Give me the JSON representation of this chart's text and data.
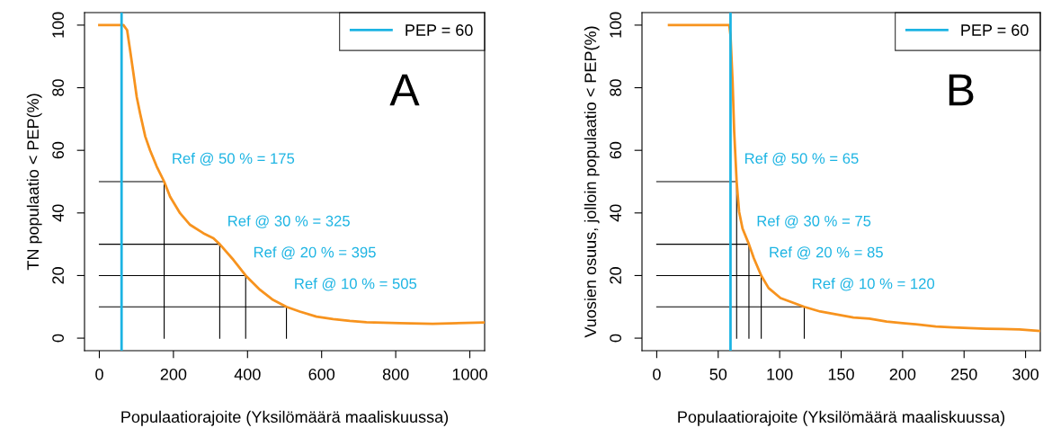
{
  "chart_data": [
    {
      "type": "line",
      "xlabel": "Populaatiorajoite (Yksilömäärä maaliskuussa)",
      "ylabel": "TN populaatio < PEP(%)",
      "xlim": [
        -40,
        1040
      ],
      "xticks": [
        0,
        200,
        400,
        600,
        800,
        1000
      ],
      "ylim": [
        -4,
        104
      ],
      "yticks": [
        0,
        20,
        40,
        60,
        80,
        100
      ],
      "grid": false,
      "legend": "top right",
      "series": [
        {
          "color": "#f7931e",
          "x": [
            0,
            65,
            75,
            83,
            92,
            101,
            110,
            124,
            137,
            155,
            175,
            191,
            218,
            245,
            281,
            308,
            325,
            362,
            395,
            434,
            469,
            505,
            541,
            586,
            631,
            676,
            721,
            811,
            900,
            1040
          ],
          "values": [
            100,
            100,
            98.4,
            92,
            84.6,
            77,
            71.8,
            64.4,
            60,
            54.8,
            50,
            45.2,
            39.9,
            36.2,
            33.5,
            31.9,
            30,
            25,
            20,
            15.4,
            12.2,
            10,
            8.5,
            6.9,
            6.1,
            5.5,
            5.1,
            4.8,
            4.6,
            5
          ]
        },
        {
          "color": "#000000",
          "x": [
            0,
            175,
            175
          ],
          "values": [
            50,
            50,
            0
          ]
        },
        {
          "color": "#000000",
          "x": [
            0,
            325,
            325
          ],
          "values": [
            30,
            30,
            0
          ]
        },
        {
          "color": "#000000",
          "x": [
            0,
            395,
            395
          ],
          "values": [
            20,
            20,
            0
          ]
        },
        {
          "color": "#000000",
          "x": [
            0,
            505,
            505
          ],
          "values": [
            10,
            10,
            0
          ]
        },
        {
          "name": "PEP = 60",
          "color": "#1cb4e3",
          "x": [
            60,
            60
          ],
          "values": [
            -4,
            104
          ]
        }
      ],
      "annotations": [
        "A",
        {
          "text": "Ref @ 50 % = 175",
          "x": 175,
          "y": 50
        },
        {
          "text": "Ref @ 30 % = 325",
          "x": 325,
          "y": 30
        },
        {
          "text": "Ref @ 20 % = 395",
          "x": 395,
          "y": 20
        },
        {
          "text": "Ref @ 10 % = 505",
          "x": 505,
          "y": 10
        }
      ]
    },
    {
      "type": "line",
      "xlabel": "Populaatiorajoite (Yksilömäärä maaliskuussa)",
      "ylabel": "Vuosien osuus, jolloin populaatio < PEP(%)",
      "xlim": [
        -12,
        312
      ],
      "xticks": [
        0,
        50,
        100,
        150,
        200,
        250,
        300
      ],
      "ylim": [
        -4,
        104
      ],
      "yticks": [
        0,
        20,
        40,
        60,
        80,
        100
      ],
      "grid": false,
      "legend": "top right",
      "series": [
        {
          "color": "#f7931e",
          "x": [
            10,
            59,
            60,
            61.7,
            63,
            65,
            67,
            69.8,
            75,
            79,
            85,
            91,
            100.7,
            120,
            133,
            149,
            160,
            173,
            187,
            200,
            214,
            227,
            241,
            254,
            268,
            281,
            295,
            312
          ],
          "values": [
            100,
            100,
            96.8,
            82,
            66,
            50,
            40.4,
            35,
            30,
            25.5,
            20,
            16,
            12.8,
            10,
            8.5,
            7.4,
            6.6,
            6.2,
            5.3,
            4.8,
            4.3,
            3.7,
            3.4,
            3.2,
            3,
            2.9,
            2.8,
            2.3
          ]
        },
        {
          "color": "#000000",
          "x": [
            0,
            65,
            65
          ],
          "values": [
            50,
            50,
            0
          ]
        },
        {
          "color": "#000000",
          "x": [
            0,
            75,
            75
          ],
          "values": [
            30,
            30,
            0
          ]
        },
        {
          "color": "#000000",
          "x": [
            0,
            85,
            85
          ],
          "values": [
            20,
            20,
            0
          ]
        },
        {
          "color": "#000000",
          "x": [
            0,
            120,
            120
          ],
          "values": [
            10,
            10,
            0
          ]
        },
        {
          "name": "PEP = 60",
          "color": "#1cb4e3",
          "x": [
            60,
            60
          ],
          "values": [
            -4,
            104
          ]
        }
      ],
      "annotations": [
        "B",
        {
          "text": "Ref @ 50 % = 65",
          "x": 65,
          "y": 50
        },
        {
          "text": "Ref @ 30 % = 75",
          "x": 75,
          "y": 30
        },
        {
          "text": "Ref @ 20 % = 85",
          "x": 85,
          "y": 20
        },
        {
          "text": "Ref @ 10 % = 120",
          "x": 120,
          "y": 10
        }
      ]
    }
  ]
}
